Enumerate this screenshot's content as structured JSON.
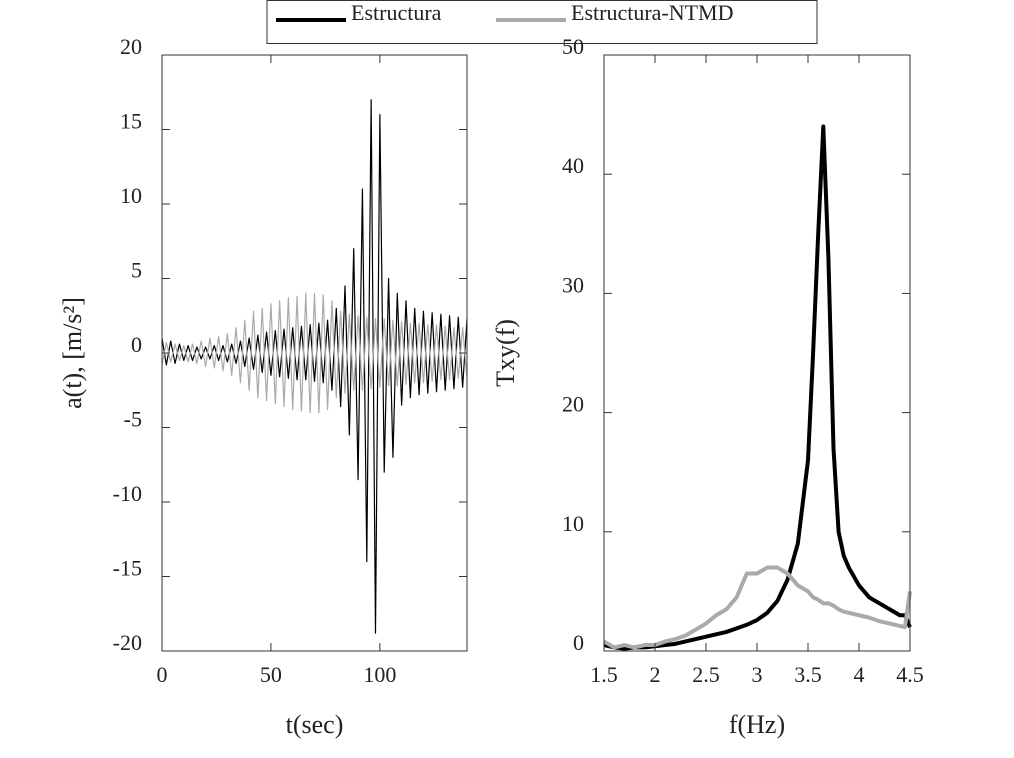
{
  "chart_data": [
    {
      "type": "line",
      "xlabel": "t(sec)",
      "ylabel": "a(t), [m/s²]",
      "xlim": [
        0,
        140
      ],
      "ylim": [
        -20,
        20
      ],
      "xticks": [
        0,
        50,
        100
      ],
      "yticks": [
        -20,
        -15,
        -10,
        -5,
        0,
        5,
        10,
        15,
        20
      ],
      "grid": false,
      "x": [
        0,
        2,
        4,
        6,
        8,
        10,
        12,
        14,
        16,
        18,
        20,
        22,
        24,
        26,
        28,
        30,
        32,
        34,
        36,
        38,
        40,
        42,
        44,
        46,
        48,
        50,
        52,
        54,
        56,
        58,
        60,
        62,
        64,
        66,
        68,
        70,
        72,
        74,
        76,
        78,
        80,
        82,
        84,
        86,
        88,
        90,
        92,
        94,
        96,
        98,
        100,
        102,
        104,
        106,
        108,
        110,
        112,
        114,
        116,
        118,
        120,
        122,
        124,
        126,
        128,
        130,
        132,
        134,
        136,
        138,
        140
      ],
      "series": [
        {
          "name": "Estructura",
          "color": "#000000",
          "values": [
            1,
            -0.8,
            0.8,
            -0.7,
            0.6,
            -0.5,
            0.5,
            -0.5,
            0.4,
            -0.4,
            0.4,
            -0.4,
            0.5,
            -0.5,
            0.5,
            -0.6,
            0.6,
            -0.7,
            0.8,
            -0.9,
            1,
            -1.1,
            1.2,
            -1.3,
            1.4,
            -1.5,
            1.5,
            -1.6,
            1.6,
            -1.7,
            1.7,
            -1.8,
            1.8,
            -1.8,
            1.9,
            -1.9,
            2,
            -2,
            2.2,
            -2.5,
            3,
            -3.6,
            4.5,
            -5.5,
            7,
            -8.5,
            11,
            -14,
            17,
            -18.8,
            16,
            -8,
            5,
            -7,
            4,
            -3.5,
            3.5,
            -3,
            3,
            -2.8,
            2.8,
            -2.7,
            2.7,
            -2.6,
            2.6,
            -2.5,
            2.5,
            -2.4,
            2.4,
            -2.3,
            2.3
          ]
        },
        {
          "name": "Estructura-NTMD",
          "color": "#aaaaaa",
          "values": [
            -0.8,
            0.7,
            -0.6,
            0.6,
            -0.5,
            0.5,
            -0.6,
            0.6,
            -0.7,
            0.8,
            -0.9,
            1,
            -1,
            1.1,
            -1.2,
            1.3,
            -1.5,
            1.7,
            -2,
            2.2,
            -2.5,
            2.8,
            -3,
            3,
            -3.2,
            3.3,
            -3.4,
            3.5,
            -3.6,
            3.7,
            -3.8,
            3.8,
            -3.9,
            4,
            -4,
            4,
            -4,
            3.9,
            -3.8,
            3.5,
            -3,
            2.8,
            -2.7,
            2.6,
            -2.5,
            2.5,
            -2.5,
            2.4,
            -2.4,
            2.3,
            -2.3,
            2.3,
            -2.2,
            2.2,
            -2.2,
            2.1,
            -2.1,
            2,
            -2,
            2,
            -2,
            1.9,
            -1.9,
            1.9,
            -1.8,
            1.8,
            -1.8,
            1.7,
            -1.7,
            1.7,
            -1.7
          ]
        }
      ]
    },
    {
      "type": "line",
      "xlabel": "f(Hz)",
      "ylabel": "Txy(f)",
      "xlim": [
        1.5,
        4.5
      ],
      "ylim": [
        0,
        50
      ],
      "xticks": [
        1.5,
        2,
        2.5,
        3,
        3.5,
        4,
        4.5
      ],
      "yticks": [
        0,
        10,
        20,
        30,
        40,
        50
      ],
      "grid": false,
      "x": [
        1.5,
        1.6,
        1.7,
        1.8,
        1.9,
        2.0,
        2.1,
        2.2,
        2.3,
        2.4,
        2.5,
        2.6,
        2.7,
        2.8,
        2.9,
        3.0,
        3.1,
        3.2,
        3.3,
        3.4,
        3.5,
        3.55,
        3.6,
        3.65,
        3.7,
        3.75,
        3.8,
        3.85,
        3.9,
        4.0,
        4.1,
        4.2,
        4.3,
        4.4,
        4.45,
        4.5
      ],
      "series": [
        {
          "name": "Estructura",
          "color": "#000000",
          "values": [
            0.5,
            0.3,
            0.2,
            0.3,
            0.3,
            0.4,
            0.5,
            0.6,
            0.8,
            1,
            1.2,
            1.4,
            1.6,
            1.9,
            2.2,
            2.6,
            3.2,
            4.2,
            6,
            9,
            16,
            25,
            35,
            44,
            33,
            17,
            10,
            8,
            7,
            5.5,
            4.5,
            4,
            3.5,
            3,
            3,
            2
          ]
        },
        {
          "name": "Estructura-NTMD",
          "color": "#aaaaaa",
          "values": [
            0.8,
            0.3,
            0.5,
            0.3,
            0.5,
            0.5,
            0.8,
            1,
            1.3,
            1.8,
            2.3,
            3,
            3.5,
            4.5,
            6.5,
            6.5,
            7,
            7,
            6.5,
            5.5,
            5,
            4.5,
            4.3,
            4,
            4,
            3.8,
            3.5,
            3.3,
            3.2,
            3,
            2.8,
            2.5,
            2.3,
            2.1,
            2,
            5
          ]
        }
      ]
    }
  ]
}
